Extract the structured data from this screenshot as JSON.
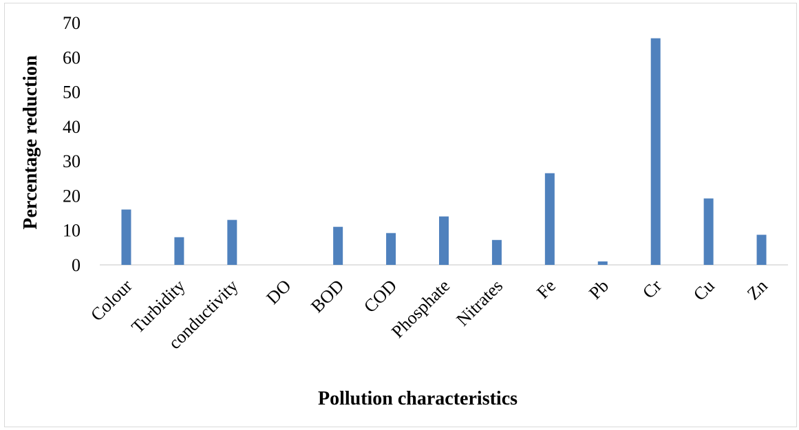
{
  "chart_data": {
    "type": "bar",
    "xlabel": "Pollution characteristics",
    "ylabel": "Percentage reduction",
    "ylim": [
      0,
      70
    ],
    "yticks": [
      0,
      10,
      20,
      30,
      40,
      50,
      60,
      70
    ],
    "grid": false,
    "legend": "none",
    "bar_color": "#4f81bd",
    "axis_color": "#d9d9d9",
    "categories": [
      "Colour",
      "Turbidity",
      "conductivity",
      "DO",
      "BOD",
      "COD",
      "Phosphate",
      "Nitrates",
      "Fe",
      "Pb",
      "Cr",
      "Cu",
      "Zn"
    ],
    "values": [
      16,
      8,
      13,
      0,
      11,
      9.2,
      14,
      7.2,
      26.5,
      1,
      65.5,
      19.2,
      8.7
    ]
  }
}
